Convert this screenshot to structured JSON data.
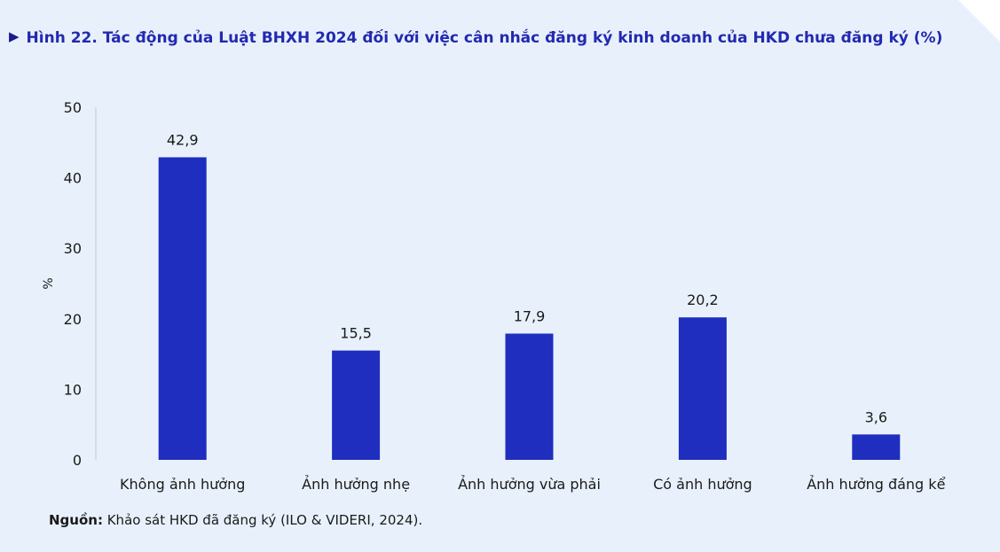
{
  "figure": {
    "marker": "▶",
    "title": "Hình 22. Tác động của Luật BHXH 2024 đối với việc cân nhắc đăng ký kinh doanh của HKD chưa đăng ký  (%)"
  },
  "source": {
    "label": "Nguồn:",
    "text": " Khảo sát HKD đã đăng ký (ILO & VIDERI, 2024)."
  },
  "colors": {
    "panel": "#e8f1fb",
    "bar": "#1f2ebf",
    "title": "#2329b0"
  },
  "chart_data": {
    "type": "bar",
    "title": "Hình 22. Tác động của Luật BHXH 2024 đối với việc cân nhắc đăng ký kinh doanh của HKD chưa đăng ký  (%)",
    "categories": [
      "Không ảnh hưởng",
      "Ảnh hưởng nhẹ",
      "Ảnh hưởng vừa phải",
      "Có ảnh hưởng",
      "Ảnh hưởng đáng kể"
    ],
    "values": [
      42.9,
      15.5,
      17.9,
      20.2,
      3.6
    ],
    "value_labels": [
      "42,9",
      "15,5",
      "17,9",
      "20,2",
      "3,6"
    ],
    "xlabel": "",
    "ylabel": "%",
    "ylim": [
      0,
      50
    ],
    "yticks": [
      0,
      10,
      20,
      30,
      40,
      50
    ],
    "grid": false,
    "legend": "none"
  }
}
